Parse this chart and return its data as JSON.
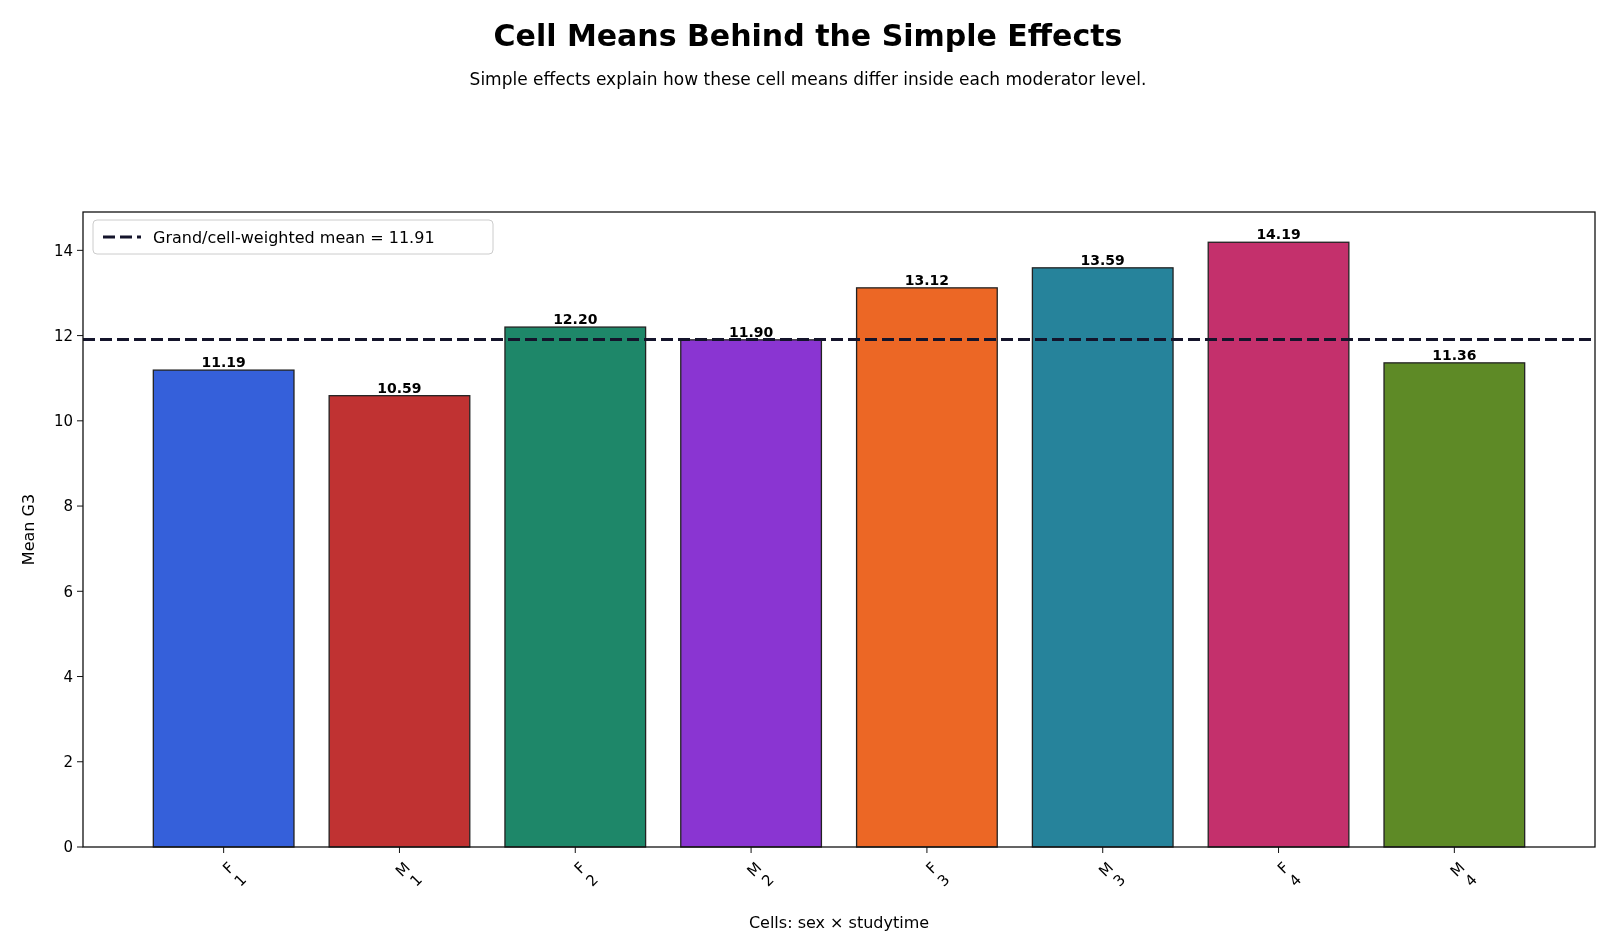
{
  "chart_data": {
    "type": "bar",
    "title": "Cell Means Behind the Simple Effects",
    "subtitle": "Simple effects explain how these cell means differ inside each moderator level.",
    "xlabel": "Cells: sex × studytime",
    "ylabel": "Mean G3",
    "categories": [
      "F\n1",
      "M\n1",
      "F\n2",
      "M\n2",
      "F\n3",
      "M\n3",
      "F\n4",
      "M\n4"
    ],
    "values": [
      11.19,
      10.59,
      12.2,
      11.9,
      13.12,
      13.59,
      14.19,
      11.36
    ],
    "colors": [
      "#3560da",
      "#c03232",
      "#1e8769",
      "#8a35d2",
      "#ec6725",
      "#26839b",
      "#c4306c",
      "#5e8a26"
    ],
    "value_labels": [
      "11.19",
      "10.59",
      "12.20",
      "11.90",
      "13.12",
      "13.59",
      "14.19",
      "11.36"
    ],
    "ylim": [
      0,
      14.9
    ],
    "yticks": [
      0,
      2,
      4,
      6,
      8,
      10,
      12,
      14
    ],
    "ref_lines": [
      {
        "axis": "y",
        "value": 11.91,
        "label": "Grand/cell-weighted mean = 11.91",
        "color": "#14142b",
        "line_style": "dashed"
      }
    ],
    "legend": "top left"
  }
}
